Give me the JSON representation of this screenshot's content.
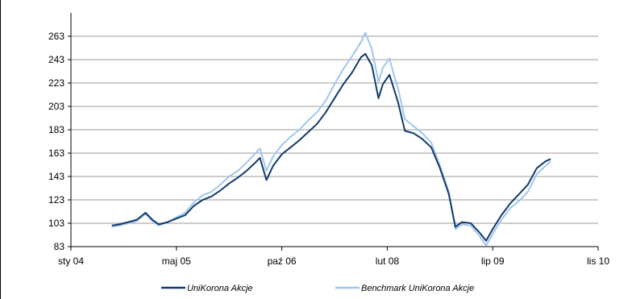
{
  "chart_data": {
    "type": "line",
    "title": "",
    "xlabel": "",
    "ylabel": "",
    "ylim": [
      83,
      283
    ],
    "yticks": [
      83,
      103,
      123,
      143,
      163,
      183,
      203,
      223,
      243,
      263
    ],
    "xticks": [
      "sty 04",
      "maj 05",
      "paź 06",
      "lut 08",
      "lip 09",
      "lis 10"
    ],
    "grid": "horizontal",
    "legend_position": "bottom",
    "series": [
      {
        "name": "UniKorona Akcje",
        "color": "#123a6b",
        "points": [
          [
            0.93,
            101
          ],
          [
            1.1,
            102
          ],
          [
            1.3,
            104
          ],
          [
            1.5,
            106
          ],
          [
            1.7,
            112
          ],
          [
            1.85,
            106
          ],
          [
            2.0,
            102
          ],
          [
            2.2,
            104
          ],
          [
            2.4,
            107
          ],
          [
            2.6,
            110
          ],
          [
            2.8,
            118
          ],
          [
            3.0,
            123
          ],
          [
            3.2,
            126
          ],
          [
            3.4,
            131
          ],
          [
            3.6,
            137
          ],
          [
            3.8,
            142
          ],
          [
            4.0,
            148
          ],
          [
            4.2,
            155
          ],
          [
            4.3,
            159
          ],
          [
            4.45,
            140
          ],
          [
            4.6,
            152
          ],
          [
            4.8,
            162
          ],
          [
            5.0,
            168
          ],
          [
            5.2,
            174
          ],
          [
            5.4,
            181
          ],
          [
            5.6,
            188
          ],
          [
            5.8,
            198
          ],
          [
            6.0,
            210
          ],
          [
            6.2,
            222
          ],
          [
            6.4,
            232
          ],
          [
            6.6,
            245
          ],
          [
            6.7,
            248
          ],
          [
            6.85,
            238
          ],
          [
            7.0,
            210
          ],
          [
            7.1,
            222
          ],
          [
            7.25,
            230
          ],
          [
            7.35,
            218
          ],
          [
            7.45,
            206
          ],
          [
            7.6,
            182
          ],
          [
            7.8,
            180
          ],
          [
            8.0,
            175
          ],
          [
            8.2,
            168
          ],
          [
            8.4,
            150
          ],
          [
            8.6,
            128
          ],
          [
            8.75,
            100
          ],
          [
            8.9,
            104
          ],
          [
            9.1,
            103
          ],
          [
            9.3,
            95
          ],
          [
            9.45,
            88
          ],
          [
            9.6,
            98
          ],
          [
            9.8,
            110
          ],
          [
            10.0,
            120
          ],
          [
            10.2,
            128
          ],
          [
            10.4,
            136
          ],
          [
            10.6,
            150
          ],
          [
            10.8,
            156
          ],
          [
            10.92,
            158
          ]
        ]
      },
      {
        "name": "Benchmark UniKorona Akcje",
        "color": "#9fc6ee",
        "points": [
          [
            0.93,
            100
          ],
          [
            1.1,
            101
          ],
          [
            1.3,
            103
          ],
          [
            1.5,
            105
          ],
          [
            1.7,
            111
          ],
          [
            1.85,
            105
          ],
          [
            2.0,
            101
          ],
          [
            2.2,
            104
          ],
          [
            2.4,
            108
          ],
          [
            2.6,
            112
          ],
          [
            2.8,
            121
          ],
          [
            3.0,
            127
          ],
          [
            3.2,
            130
          ],
          [
            3.4,
            136
          ],
          [
            3.6,
            143
          ],
          [
            3.8,
            148
          ],
          [
            4.0,
            155
          ],
          [
            4.2,
            163
          ],
          [
            4.3,
            167
          ],
          [
            4.45,
            148
          ],
          [
            4.6,
            160
          ],
          [
            4.8,
            170
          ],
          [
            5.0,
            177
          ],
          [
            5.2,
            183
          ],
          [
            5.4,
            191
          ],
          [
            5.6,
            198
          ],
          [
            5.8,
            208
          ],
          [
            6.0,
            222
          ],
          [
            6.2,
            235
          ],
          [
            6.4,
            246
          ],
          [
            6.6,
            258
          ],
          [
            6.7,
            266
          ],
          [
            6.85,
            252
          ],
          [
            7.0,
            224
          ],
          [
            7.1,
            236
          ],
          [
            7.25,
            244
          ],
          [
            7.35,
            230
          ],
          [
            7.45,
            218
          ],
          [
            7.6,
            192
          ],
          [
            7.8,
            186
          ],
          [
            8.0,
            180
          ],
          [
            8.2,
            172
          ],
          [
            8.4,
            152
          ],
          [
            8.6,
            130
          ],
          [
            8.75,
            98
          ],
          [
            8.9,
            102
          ],
          [
            9.1,
            101
          ],
          [
            9.3,
            92
          ],
          [
            9.45,
            84
          ],
          [
            9.6,
            94
          ],
          [
            9.8,
            106
          ],
          [
            10.0,
            116
          ],
          [
            10.2,
            122
          ],
          [
            10.4,
            130
          ],
          [
            10.6,
            145
          ],
          [
            10.8,
            152
          ],
          [
            10.92,
            156
          ]
        ]
      }
    ],
    "x_domain": [
      0,
      12
    ]
  },
  "colors": {
    "grid": "#999999",
    "axis": "#000000"
  }
}
